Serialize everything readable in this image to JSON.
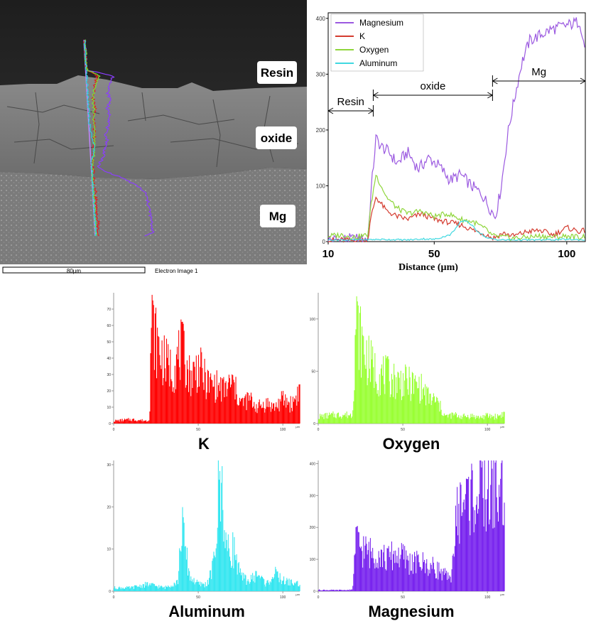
{
  "sem": {
    "scale_label": "80µm",
    "image_label": "Electron Image 1",
    "regions": [
      "Resin",
      "oxide",
      "Mg"
    ]
  },
  "chart_data": [
    {
      "type": "line",
      "title": "",
      "xlabel": "Distance (µm)",
      "ylabel": "",
      "xlim": [
        10,
        107
      ],
      "ylim": [
        0,
        410
      ],
      "x_ticks": [
        10,
        50,
        100
      ],
      "y_ticks": [
        0,
        100,
        200,
        300,
        400
      ],
      "legend": [
        "Magnesium",
        "K",
        "Oxygen",
        "Aluminum"
      ],
      "legend_position": "top-left",
      "annotations": [
        {
          "label": "Resin",
          "from": 10,
          "to": 27
        },
        {
          "label": "oxide",
          "from": 27,
          "to": 72
        },
        {
          "label": "Mg",
          "from": 72,
          "to": 107
        }
      ],
      "series": [
        {
          "name": "Magnesium",
          "color": "#9b59e0",
          "x": [
            10,
            15,
            20,
            25,
            26,
            28,
            30,
            33,
            36,
            40,
            44,
            48,
            52,
            56,
            60,
            64,
            68,
            71,
            73,
            75,
            78,
            80,
            83,
            86,
            90,
            94,
            98,
            102,
            105,
            107
          ],
          "values": [
            3,
            4,
            4,
            5,
            80,
            185,
            170,
            160,
            140,
            160,
            130,
            150,
            135,
            110,
            120,
            100,
            85,
            60,
            45,
            90,
            200,
            250,
            320,
            360,
            370,
            380,
            385,
            390,
            395,
            340
          ]
        },
        {
          "name": "K",
          "color": "#d43b2f",
          "x": [
            10,
            15,
            20,
            25,
            26,
            28,
            32,
            36,
            40,
            45,
            50,
            55,
            60,
            65,
            70,
            72,
            76,
            80,
            85,
            90,
            95,
            100,
            105,
            107
          ],
          "values": [
            2,
            3,
            2,
            3,
            40,
            80,
            55,
            45,
            40,
            50,
            40,
            35,
            30,
            20,
            12,
            6,
            15,
            10,
            18,
            20,
            12,
            25,
            18,
            20
          ]
        },
        {
          "name": "Oxygen",
          "color": "#8fd63c",
          "x": [
            10,
            15,
            20,
            25,
            26,
            28,
            32,
            36,
            40,
            45,
            50,
            55,
            60,
            65,
            70,
            72,
            76,
            80,
            85,
            90,
            95,
            100,
            105,
            107
          ],
          "values": [
            10,
            12,
            8,
            12,
            60,
            120,
            80,
            60,
            50,
            55,
            45,
            50,
            40,
            35,
            20,
            10,
            8,
            6,
            8,
            10,
            8,
            10,
            8,
            10
          ]
        },
        {
          "name": "Aluminum",
          "color": "#40d8e0",
          "x": [
            10,
            20,
            30,
            40,
            46,
            50,
            56,
            60,
            62,
            64,
            66,
            70,
            75,
            80,
            90,
            100,
            107
          ],
          "values": [
            3,
            3,
            4,
            3,
            5,
            4,
            12,
            35,
            38,
            30,
            20,
            6,
            3,
            3,
            3,
            4,
            3
          ]
        }
      ]
    },
    {
      "type": "bar",
      "label": "K",
      "color": "#ff0000",
      "xlim": [
        0,
        110
      ],
      "ylim": [
        0,
        80
      ],
      "x_ticks": [
        0,
        50,
        100
      ],
      "y_ticks": [
        0,
        10,
        20,
        30,
        40,
        50,
        60,
        70
      ],
      "x_unit": "µm",
      "x": [
        0,
        10,
        20,
        21,
        22,
        25,
        30,
        35,
        40,
        45,
        50,
        55,
        60,
        65,
        70,
        75,
        80,
        85,
        90,
        95,
        100,
        105,
        110
      ],
      "values": [
        2,
        3,
        2,
        5,
        78,
        60,
        45,
        40,
        55,
        35,
        42,
        30,
        28,
        25,
        30,
        15,
        18,
        12,
        15,
        12,
        18,
        14,
        26
      ]
    },
    {
      "type": "bar",
      "label": "Oxygen",
      "color": "#99ff33",
      "xlim": [
        0,
        110
      ],
      "ylim": [
        0,
        125
      ],
      "x_ticks": [
        0,
        50,
        100
      ],
      "y_ticks": [
        0,
        50,
        100
      ],
      "x_unit": "µm",
      "x": [
        0,
        10,
        20,
        21,
        22,
        25,
        30,
        35,
        40,
        45,
        50,
        55,
        60,
        65,
        70,
        75,
        80,
        85,
        90,
        95,
        100,
        105,
        110
      ],
      "values": [
        8,
        10,
        10,
        60,
        120,
        95,
        70,
        58,
        55,
        50,
        48,
        45,
        42,
        30,
        25,
        8,
        10,
        8,
        9,
        7,
        9,
        8,
        12
      ]
    },
    {
      "type": "bar",
      "label": "Aluminum",
      "color": "#33e6f0",
      "xlim": [
        0,
        110
      ],
      "ylim": [
        0,
        31
      ],
      "x_ticks": [
        0,
        50,
        100
      ],
      "y_ticks": [
        0,
        10,
        20,
        30
      ],
      "x_unit": "µm",
      "x": [
        0,
        10,
        20,
        30,
        38,
        40,
        42,
        45,
        50,
        55,
        58,
        60,
        62,
        64,
        66,
        68,
        70,
        72,
        75,
        80,
        85,
        90,
        95,
        100,
        110
      ],
      "values": [
        1,
        1,
        2,
        1,
        3,
        20,
        12,
        4,
        2,
        2,
        6,
        12,
        30,
        29,
        15,
        10,
        13,
        10,
        4,
        3,
        5,
        2,
        5,
        3,
        2
      ]
    },
    {
      "type": "bar",
      "label": "Magnesium",
      "color": "#7722ee",
      "xlim": [
        0,
        110
      ],
      "ylim": [
        0,
        410
      ],
      "x_ticks": [
        0,
        50,
        100
      ],
      "y_ticks": [
        0,
        100,
        200,
        300,
        400
      ],
      "x_unit": "µm",
      "x": [
        0,
        10,
        20,
        21,
        22,
        25,
        30,
        35,
        40,
        45,
        50,
        55,
        60,
        65,
        70,
        75,
        78,
        80,
        82,
        85,
        90,
        95,
        100,
        105,
        110
      ],
      "values": [
        5,
        4,
        5,
        100,
        190,
        165,
        145,
        150,
        120,
        140,
        130,
        105,
        110,
        95,
        85,
        60,
        40,
        180,
        290,
        340,
        360,
        370,
        380,
        385,
        370
      ]
    }
  ]
}
